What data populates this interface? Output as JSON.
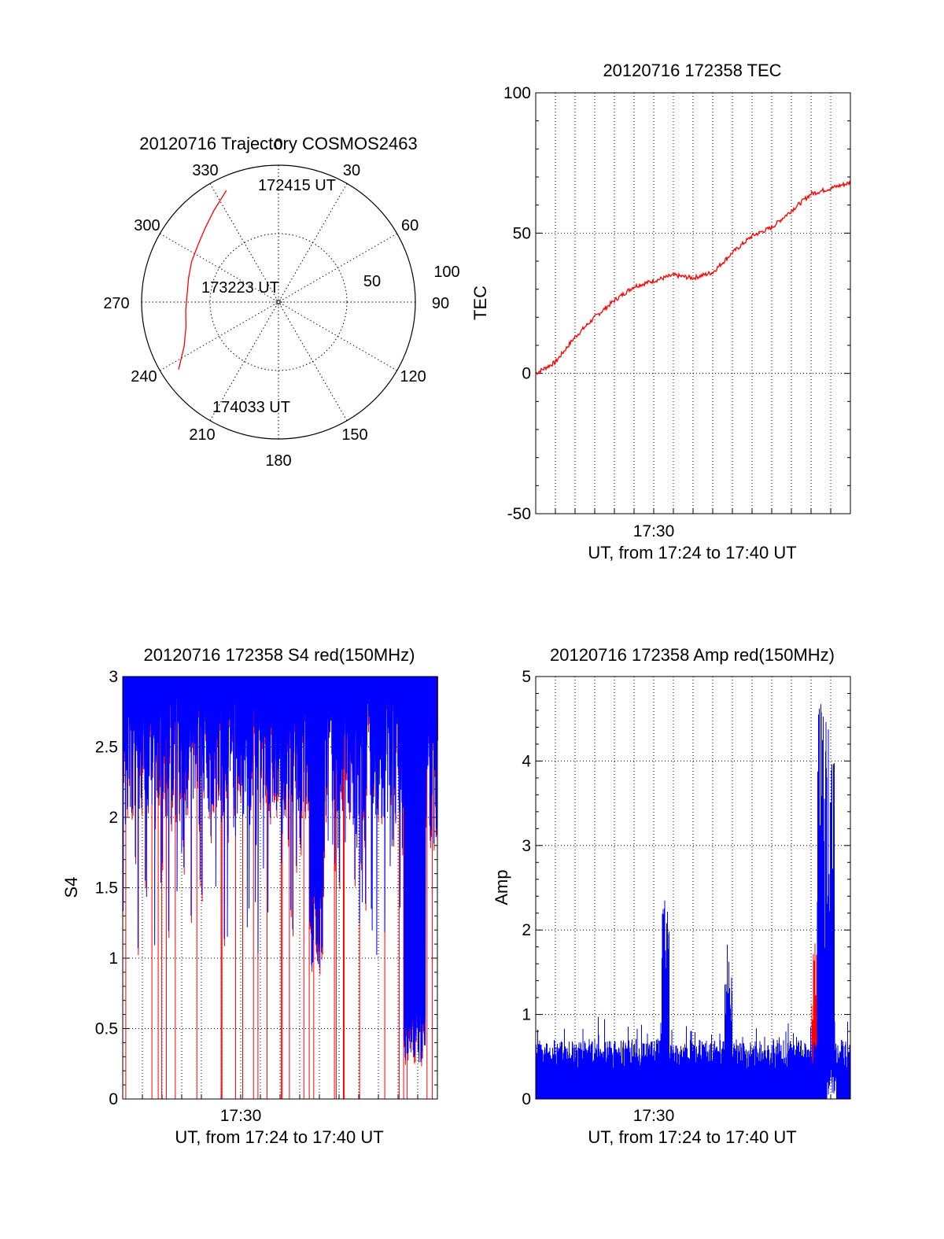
{
  "chart_data": [
    {
      "id": "polar",
      "type": "scatter",
      "title": "20120716 Trajectory COSMOS2463",
      "projection": "polar",
      "angle_labels": [
        "0",
        "30",
        "60",
        "90",
        "120",
        "150",
        "180",
        "210",
        "240",
        "270",
        "300",
        "330"
      ],
      "radius_labels": [
        "50",
        "100"
      ],
      "grid": true,
      "trajectory": {
        "azimuth_deg": [
          335,
          325,
          315,
          305,
          295,
          285,
          275,
          265,
          255,
          245,
          236
        ],
        "radius": [
          90,
          82,
          76,
          72,
          70,
          68,
          67,
          68,
          70,
          76,
          88
        ]
      },
      "annotations": [
        {
          "text": "172415 UT"
        },
        {
          "text": "173223 UT"
        },
        {
          "text": "174033 UT"
        }
      ],
      "colors": {
        "trajectory": "#ff0000"
      }
    },
    {
      "id": "tec",
      "type": "line",
      "title": "20120716 172358 TEC",
      "ylabel": "TEC",
      "xlabel": "UT, from 17:24 to 17:40 UT",
      "x_tick_label": "17:30",
      "ylim": [
        -50,
        100
      ],
      "y_ticks": [
        "100",
        "50",
        "0",
        "-50"
      ],
      "xlim_minutes": [
        0,
        16
      ],
      "grid": true,
      "series": [
        {
          "color": "#ff0000",
          "x": [
            0,
            1,
            2,
            3,
            4,
            5,
            6,
            7,
            8,
            9,
            10,
            11,
            12,
            13,
            14,
            15,
            16
          ],
          "values": [
            0,
            4,
            13,
            20,
            26,
            31,
            33,
            35,
            34,
            36,
            43,
            49,
            52,
            58,
            64,
            66,
            68
          ]
        }
      ]
    },
    {
      "id": "s4",
      "type": "line",
      "title": "20120716 172358 S4 red(150MHz)",
      "ylabel": "S4",
      "xlabel": "UT, from 17:24 to 17:40 UT",
      "x_tick_label": "17:30",
      "ylim": [
        0,
        3
      ],
      "y_ticks": [
        "3",
        "2.5",
        "2",
        "1.5",
        "1",
        "0.5",
        "0"
      ],
      "xlim_minutes": [
        0,
        16
      ],
      "grid": true,
      "colors": {
        "red": "#ff0000",
        "blue": "#0000ff"
      }
    },
    {
      "id": "amp",
      "type": "line",
      "title": "20120716 172358 Amp red(150MHz)",
      "ylabel": "Amp",
      "xlabel": "UT, from 17:24 to 17:40 UT",
      "x_tick_label": "17:30",
      "ylim": [
        0,
        5
      ],
      "y_ticks": [
        "5",
        "4",
        "3",
        "2",
        "1",
        "0"
      ],
      "xlim_minutes": [
        0,
        16
      ],
      "grid": true,
      "colors": {
        "red": "#ff0000",
        "blue": "#0000ff"
      }
    }
  ]
}
